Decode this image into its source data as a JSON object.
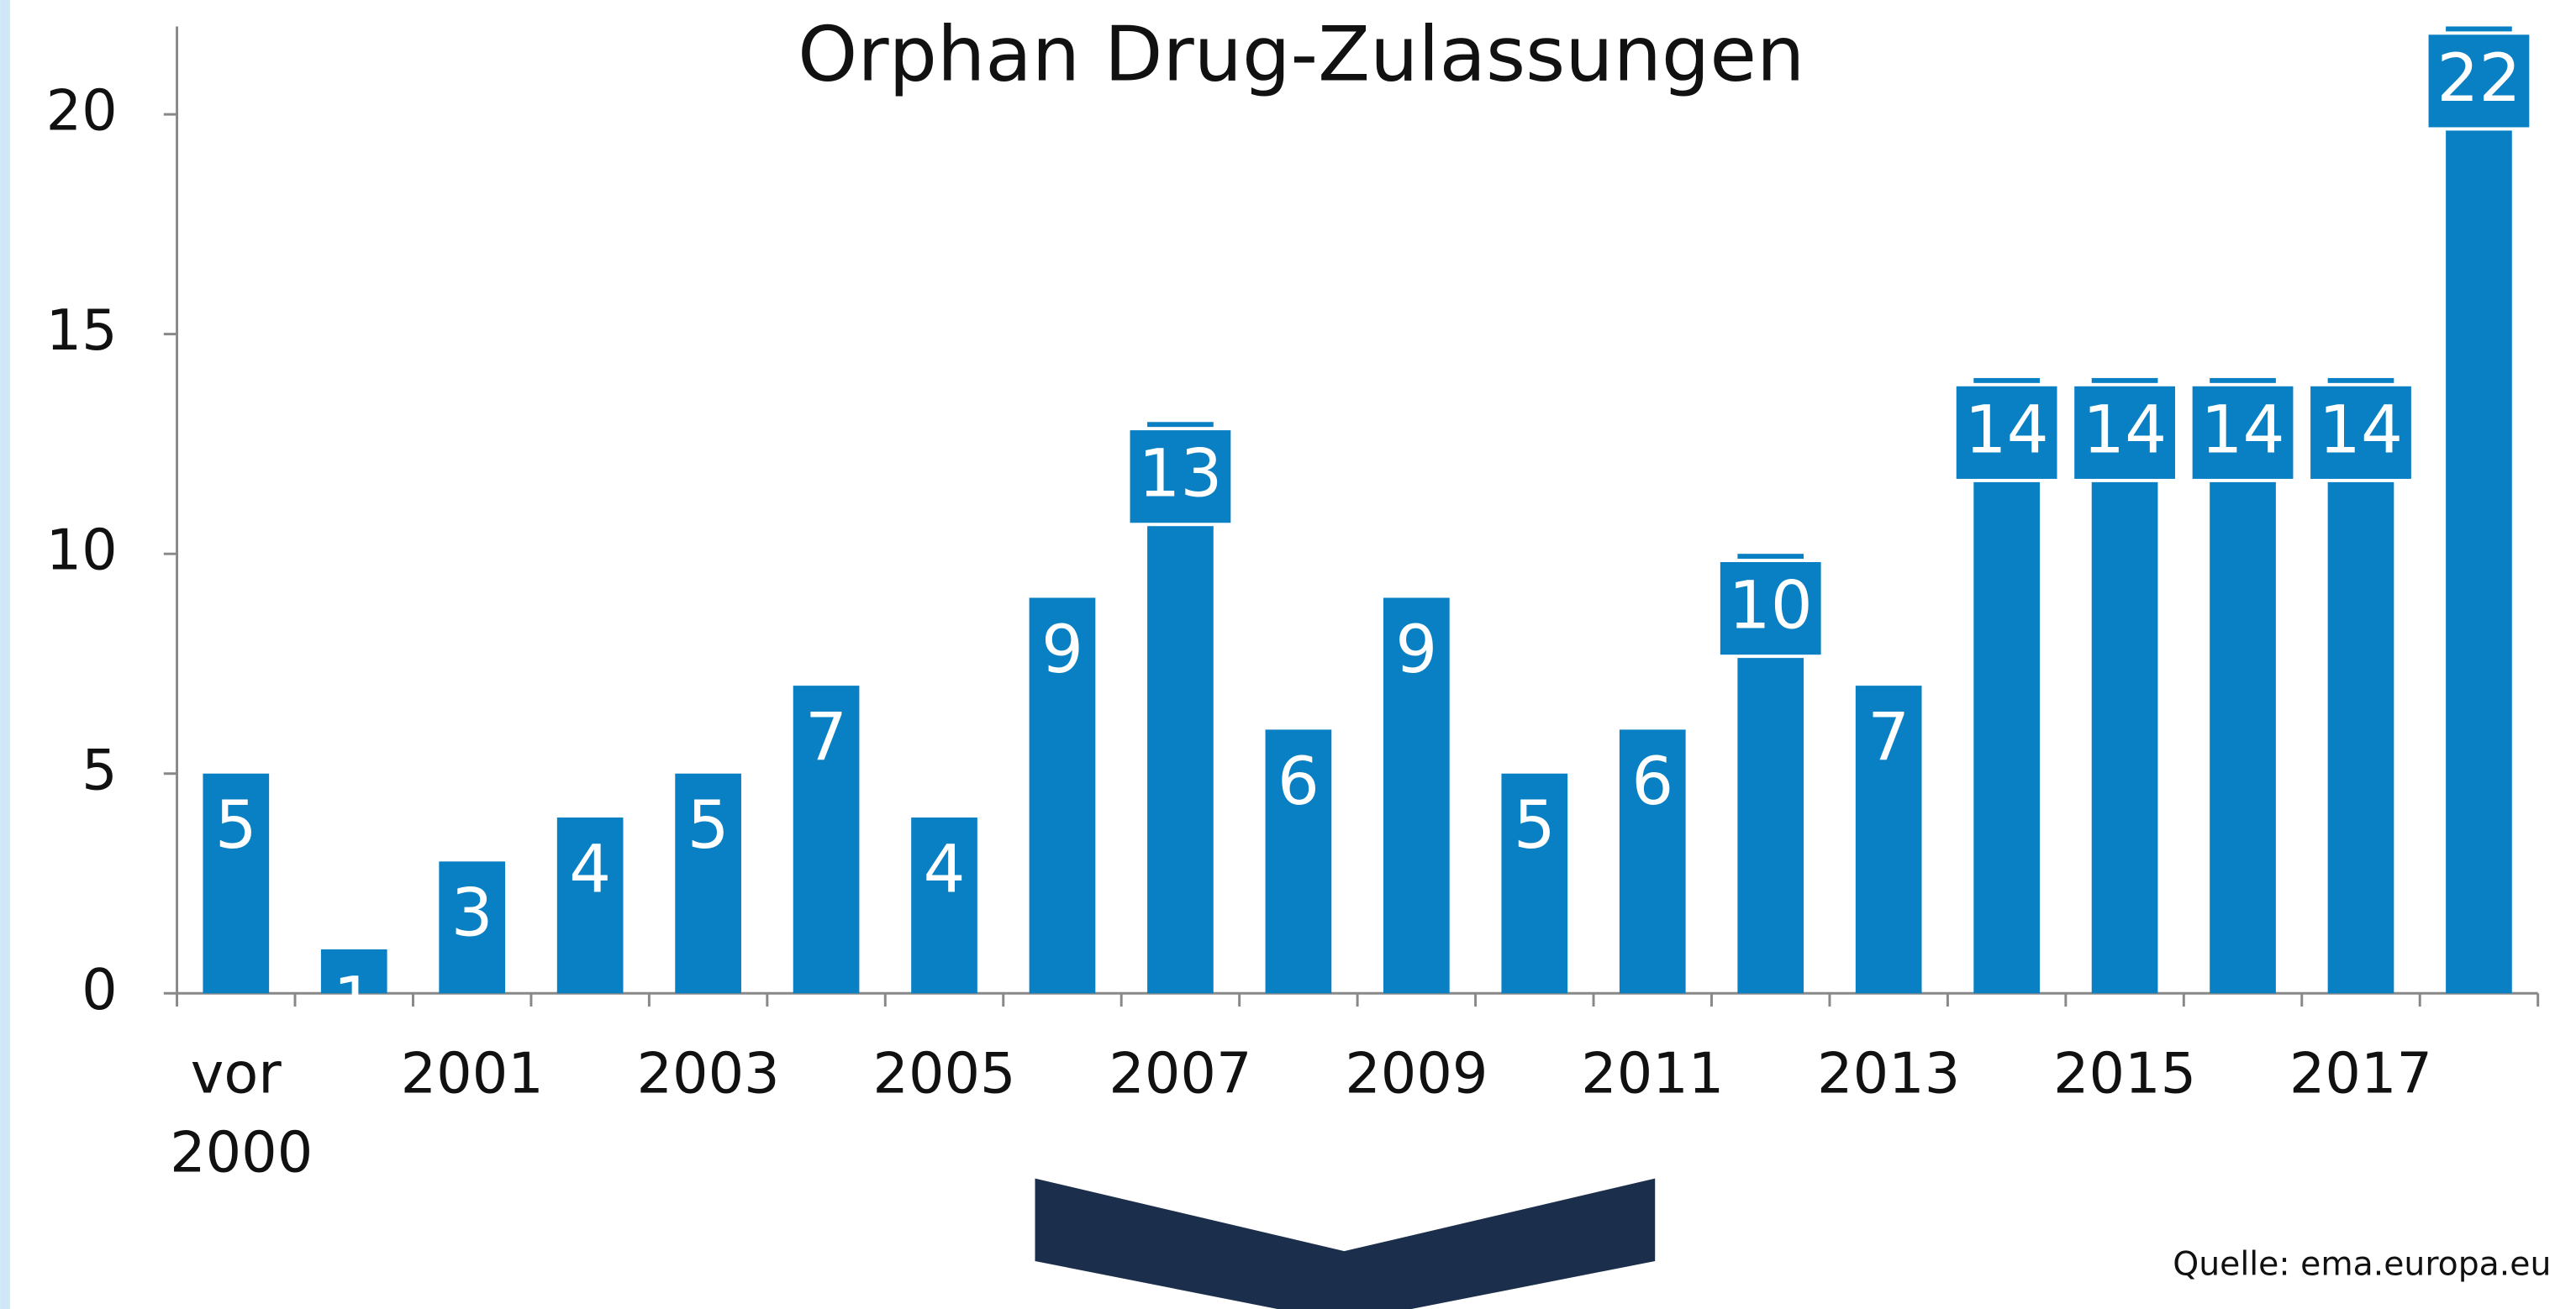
{
  "chart_data": {
    "type": "bar",
    "title": "Orphan Drug-Zulassungen",
    "categories": [
      "vor 2000",
      null,
      "2001",
      null,
      "2003",
      null,
      "2005",
      null,
      "2007",
      null,
      "2009",
      null,
      "2011",
      null,
      "2013",
      null,
      "2015",
      null,
      "2017",
      null
    ],
    "values": [
      5,
      1,
      3,
      4,
      5,
      7,
      4,
      9,
      13,
      6,
      9,
      5,
      6,
      10,
      7,
      14,
      14,
      14,
      14,
      22
    ],
    "color": "#0a80c4",
    "ylim": [
      0,
      22
    ],
    "yticks": [
      0,
      5,
      10,
      15,
      20
    ],
    "grid": false,
    "source": "Quelle: ema.europa.eu"
  }
}
